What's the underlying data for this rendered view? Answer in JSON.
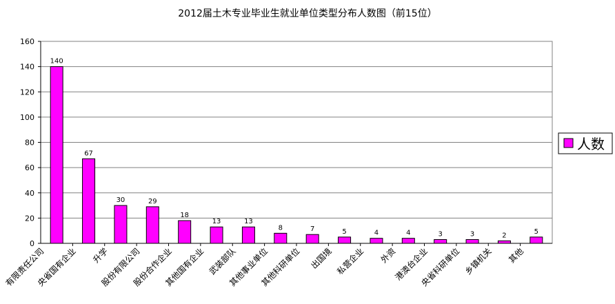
{
  "chart_data": {
    "type": "bar",
    "title": "2012届土木专业毕业生就业单位类型分布人数图（前15位）",
    "categories": [
      "有限责任公司",
      "央省国有企业",
      "升学",
      "股份有限公司",
      "股份合作企业",
      "其他国有企业",
      "武装部队",
      "其他事业单位",
      "其他科研单位",
      "出国境",
      "私营企业",
      "外资",
      "港澳台企业",
      "央省科研单位",
      "乡镇机关",
      "其他"
    ],
    "series": [
      {
        "name": "人数",
        "color": "#ff00ff",
        "values": [
          140,
          67,
          30,
          29,
          18,
          13,
          13,
          8,
          7,
          5,
          4,
          4,
          3,
          3,
          2,
          5
        ]
      }
    ],
    "ylim": [
      0,
      160
    ],
    "yticks": [
      0,
      20,
      40,
      60,
      80,
      100,
      120,
      140,
      160
    ],
    "grid": true,
    "legend": "right"
  }
}
